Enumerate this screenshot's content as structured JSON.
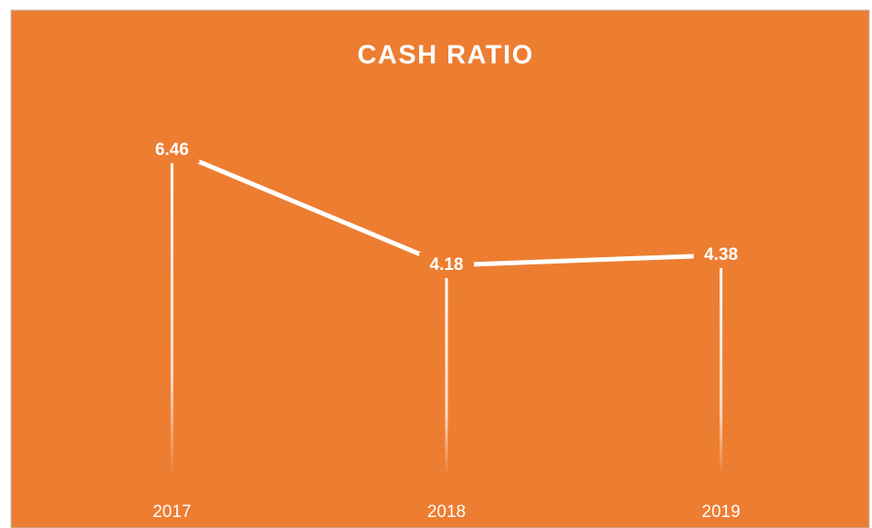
{
  "chart_data": {
    "type": "line",
    "title": "CASH RATIO",
    "categories": [
      "2017",
      "2018",
      "2019"
    ],
    "values": [
      6.46,
      4.18,
      4.38
    ],
    "color": "#ffffff",
    "background": "#ed7d31",
    "drop_lines": true,
    "ylim": [
      0,
      7
    ]
  }
}
